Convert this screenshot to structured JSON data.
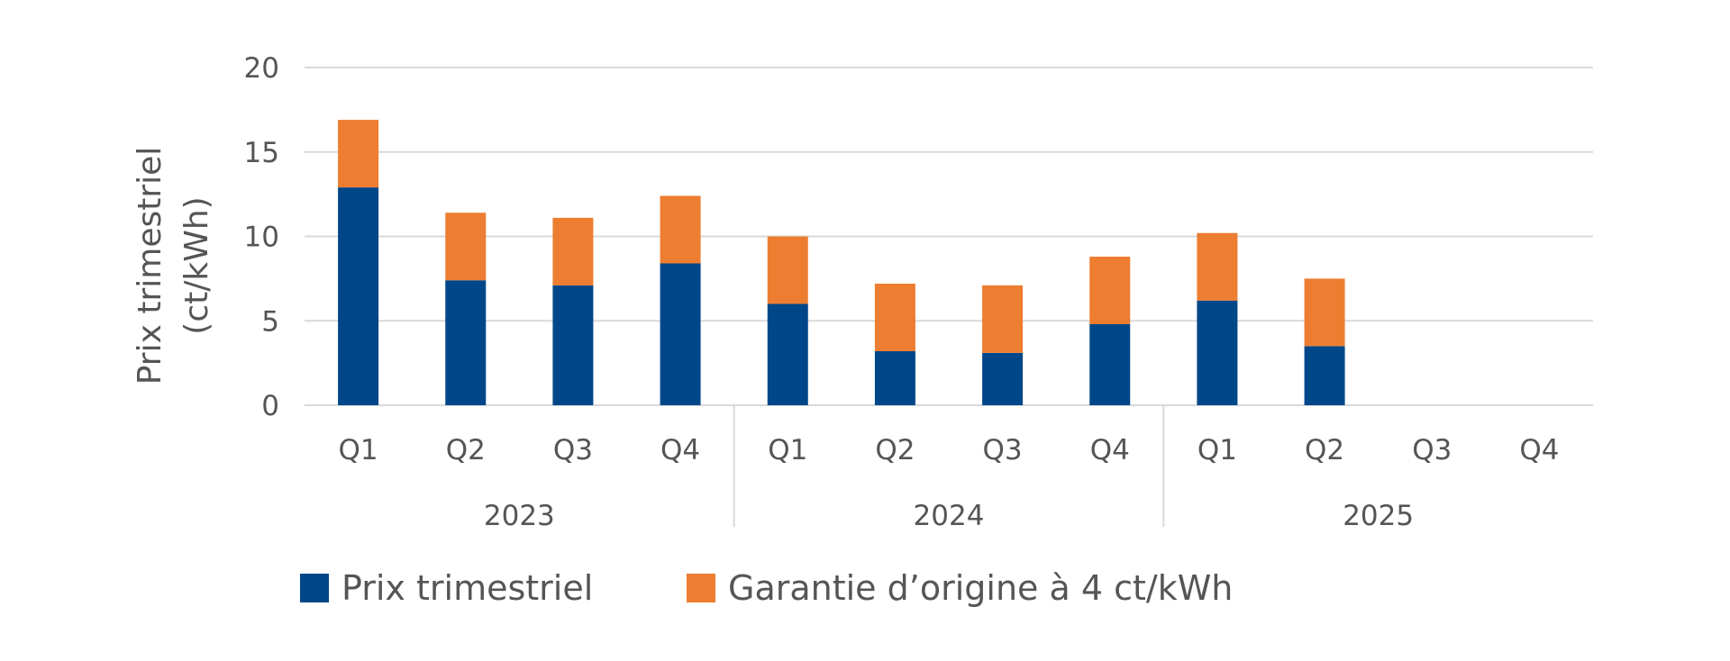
{
  "chart_data": {
    "type": "bar",
    "stacked": true,
    "title": "",
    "ylabel_line1": "Prix trimestriel",
    "ylabel_line2": "(ct/kWh)",
    "ylim": [
      0,
      20
    ],
    "yticks": [
      "0",
      "5",
      "10",
      "15",
      "20"
    ],
    "grid": true,
    "legend_position": "bottom",
    "groups": [
      {
        "label": "2023",
        "quarters": [
          "Q1",
          "Q2",
          "Q3",
          "Q4"
        ]
      },
      {
        "label": "2024",
        "quarters": [
          "Q1",
          "Q2",
          "Q3",
          "Q4"
        ]
      },
      {
        "label": "2025",
        "quarters": [
          "Q1",
          "Q2",
          "Q3",
          "Q4"
        ]
      }
    ],
    "series": [
      {
        "name": "Prix trimestriel",
        "color": "#00478a",
        "values": [
          12.9,
          7.4,
          7.1,
          8.4,
          6.0,
          3.2,
          3.1,
          4.8,
          6.2,
          3.5,
          null,
          null
        ]
      },
      {
        "name": "Garantie d’origine à 4 ct/kWh",
        "color": "#ed7d31",
        "values": [
          4,
          4,
          4,
          4,
          4,
          4,
          4,
          4,
          4,
          4,
          null,
          null
        ]
      }
    ]
  }
}
